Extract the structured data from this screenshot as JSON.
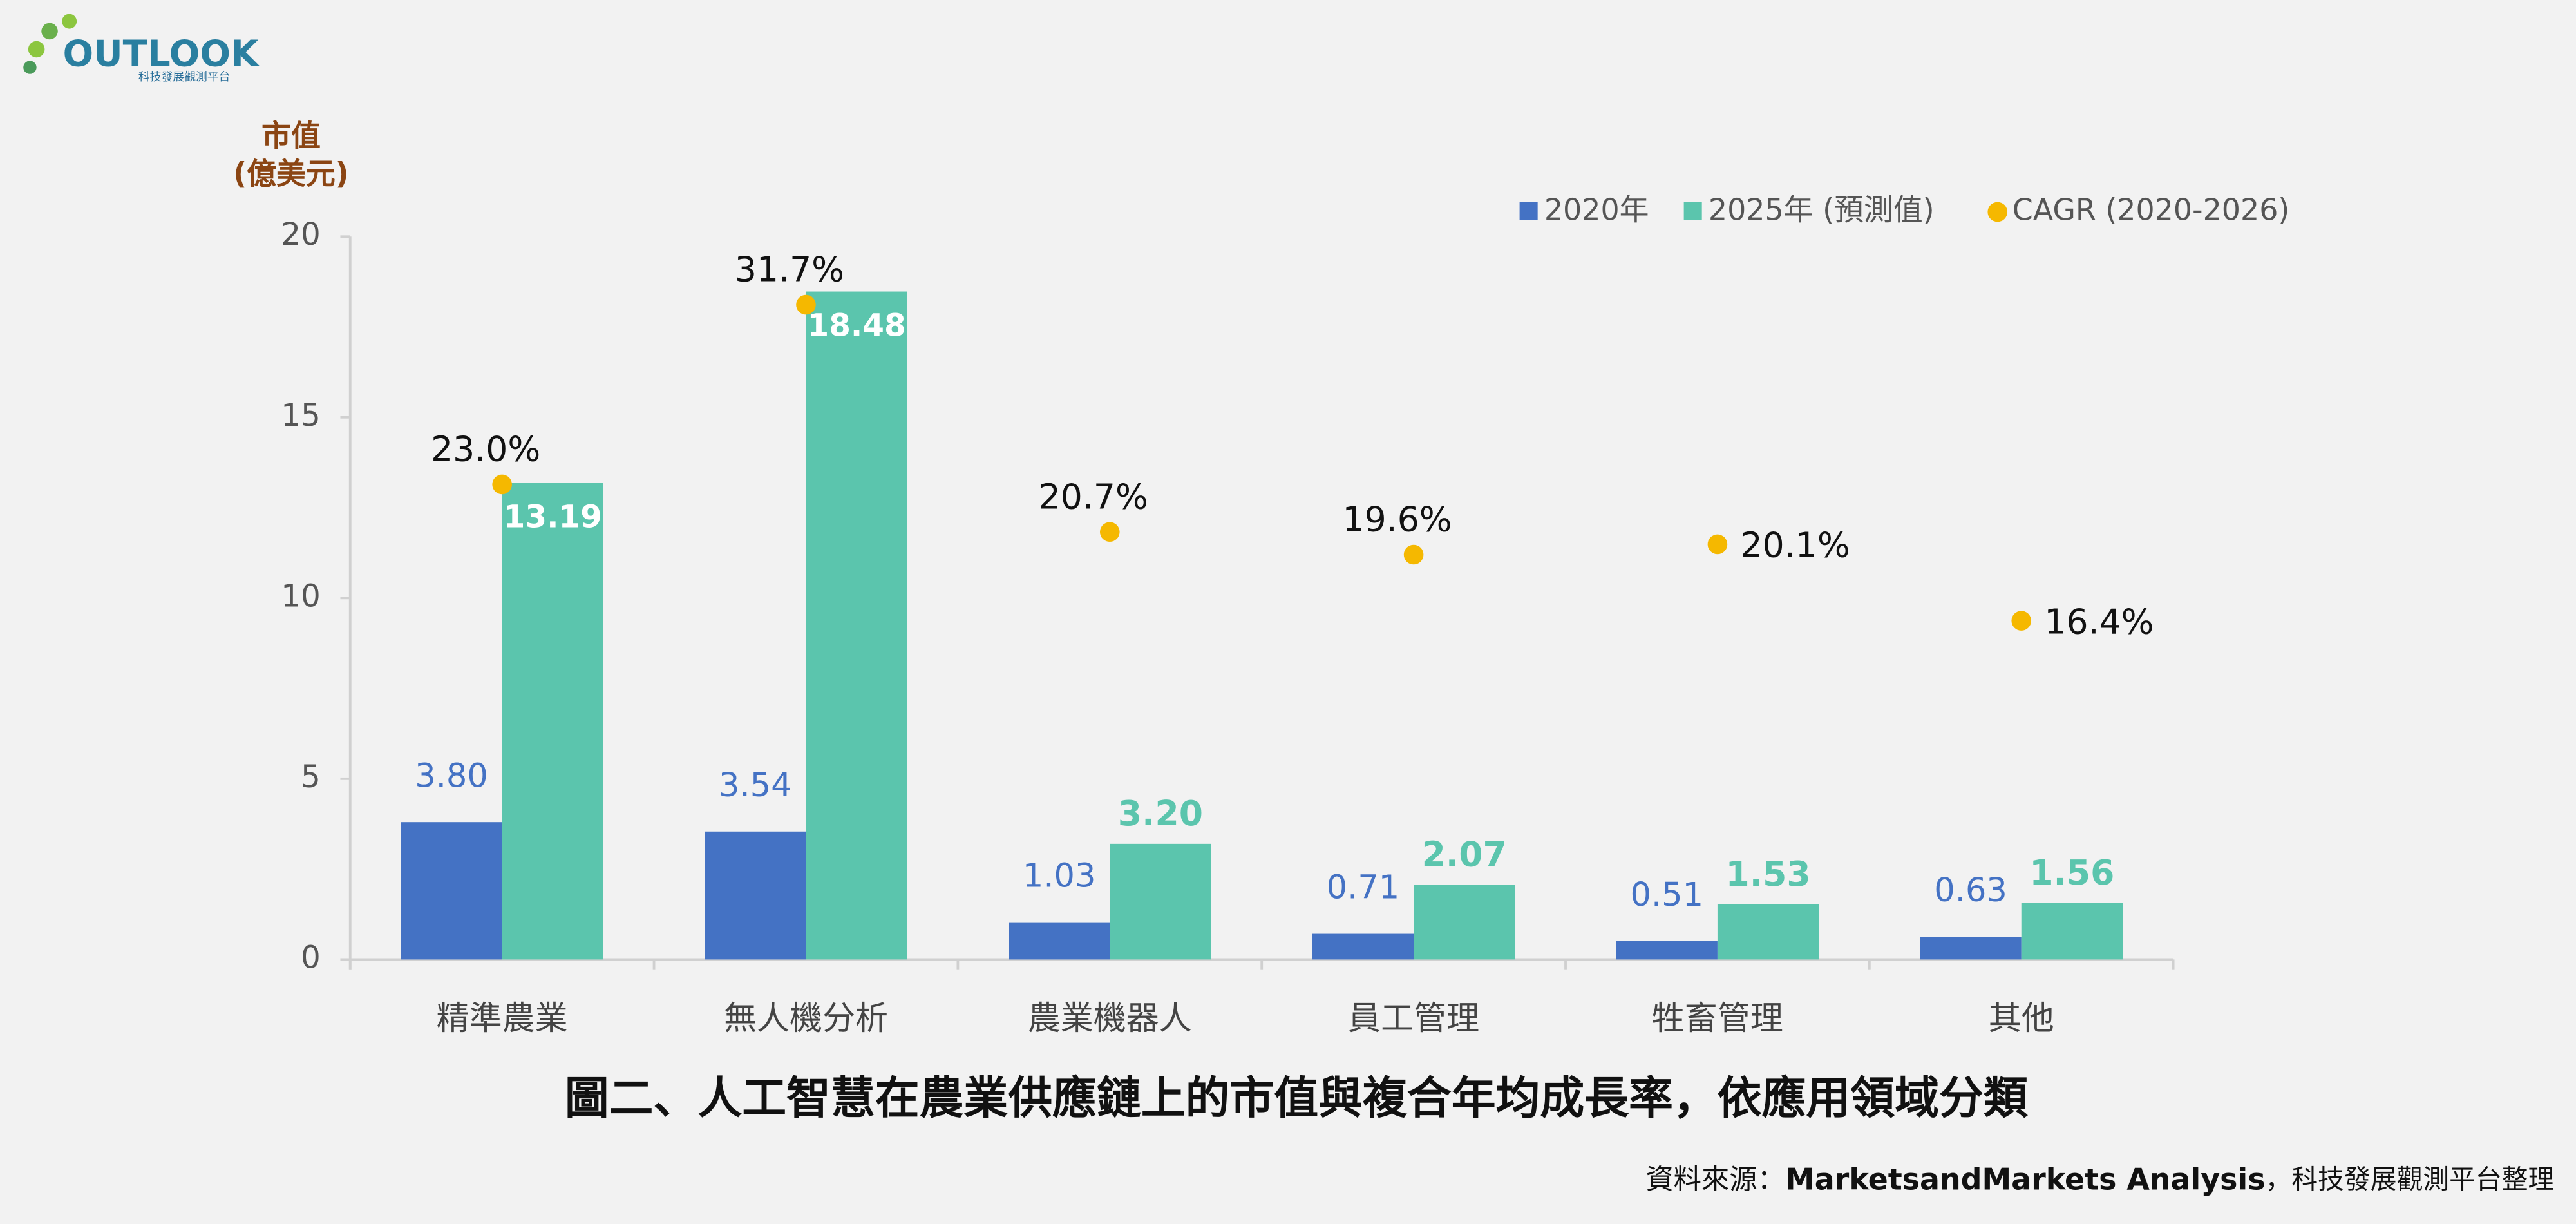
{
  "logo": {
    "name": "OUTLOOK",
    "subtitle": "科技發展觀測平台"
  },
  "chart_data": {
    "type": "bar",
    "y_axis_label": [
      "市值",
      "(億美元)"
    ],
    "categories": [
      "精準農業",
      "無人機分析",
      "農業機器人",
      "員工管理",
      "牲畜管理",
      "其他"
    ],
    "series": [
      {
        "name": "2020年",
        "color": "#4472c4",
        "values": [
          3.8,
          3.54,
          1.03,
          0.71,
          0.51,
          0.63
        ],
        "value_labels": [
          "3.80",
          "3.54",
          "1.03",
          "0.71",
          "0.51",
          "0.63"
        ]
      },
      {
        "name": "2025年 (預測值)",
        "color": "#5bc5ad",
        "values": [
          13.19,
          18.48,
          3.2,
          2.07,
          1.53,
          1.56
        ],
        "value_labels": [
          "13.19",
          "18.48",
          "3.20",
          "2.07",
          "1.53",
          "1.56"
        ]
      },
      {
        "name": "CAGR (2020-2026)",
        "color": "#f5b800",
        "type": "scatter",
        "axis": "y2",
        "values": [
          23.0,
          31.7,
          20.7,
          19.6,
          20.1,
          16.4
        ],
        "value_labels": [
          "23.0%",
          "31.7%",
          "20.7%",
          "19.6%",
          "20.1%",
          "16.4%"
        ]
      }
    ],
    "ylim": [
      0,
      20
    ],
    "yticks": [
      0,
      5,
      10,
      15,
      20
    ],
    "y2lim": [
      0,
      35
    ],
    "caption": "圖二、人工智慧在農業供應鏈上的市值與複合年均成長率，依應用領域分類",
    "source": {
      "prefix": "資料來源：",
      "org": "MarketsandMarkets Analysis",
      "suffix": "，科技發展觀測平台整理"
    }
  }
}
